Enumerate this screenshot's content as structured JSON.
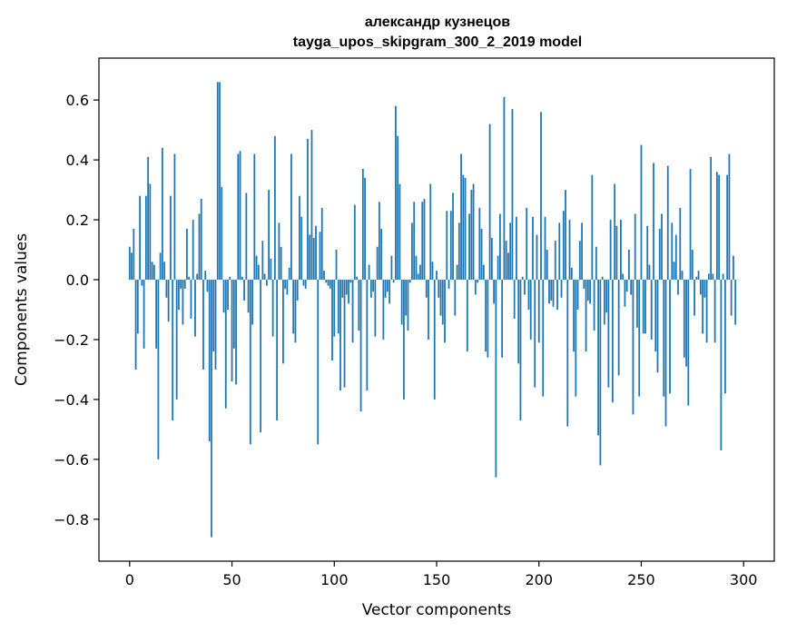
{
  "chart_data": {
    "type": "bar",
    "title": [
      "александр кузнецов",
      "tayga_upos_skipgram_300_2_2019 model"
    ],
    "xlabel": "Vector components",
    "ylabel": "Components values",
    "xlim": [
      -15,
      315
    ],
    "ylim": [
      -0.94,
      0.74
    ],
    "xticks": [
      0,
      50,
      100,
      150,
      200,
      250,
      300
    ],
    "xtick_labels": [
      "0",
      "50",
      "100",
      "150",
      "200",
      "250",
      "300"
    ],
    "yticks": [
      -0.8,
      -0.6,
      -0.4,
      -0.2,
      0.0,
      0.2,
      0.4,
      0.6
    ],
    "ytick_labels": [
      "−0.8",
      "−0.6",
      "−0.4",
      "−0.2",
      "0.0",
      "0.2",
      "0.4",
      "0.6"
    ],
    "grid": false,
    "color": "#1f77b4",
    "values": [
      0.11,
      0.09,
      0.17,
      -0.3,
      -0.18,
      0.28,
      -0.02,
      -0.23,
      0.28,
      0.41,
      0.32,
      0.06,
      0.05,
      -0.23,
      -0.6,
      0.09,
      0.44,
      0.06,
      -0.06,
      -0.14,
      0.28,
      -0.47,
      0.42,
      -0.4,
      -0.1,
      -0.03,
      -0.15,
      -0.03,
      0.17,
      0.01,
      -0.13,
      0.2,
      -0.19,
      0.02,
      0.22,
      0.27,
      -0.3,
      0.03,
      -0.04,
      -0.54,
      -0.86,
      -0.24,
      -0.3,
      0.66,
      0.66,
      0.31,
      -0.11,
      -0.43,
      -0.1,
      0.01,
      -0.34,
      -0.23,
      -0.35,
      0.42,
      0.43,
      0.01,
      -0.07,
      0.29,
      -0.11,
      -0.55,
      -0.15,
      0.42,
      0.08,
      0.05,
      -0.51,
      0.13,
      0.02,
      -0.02,
      0.3,
      0.07,
      -0.19,
      0.48,
      -0.47,
      0.19,
      0.11,
      -0.28,
      -0.03,
      -0.05,
      0.04,
      0.42,
      -0.18,
      -0.21,
      -0.07,
      0.28,
      0.21,
      -0.02,
      -0.03,
      0.47,
      0.15,
      0.5,
      0.14,
      0.18,
      -0.55,
      0.16,
      0.24,
      0.03,
      -0.01,
      -0.02,
      -0.03,
      -0.27,
      -0.19,
      0.1,
      -0.18,
      -0.37,
      -0.06,
      -0.36,
      -0.05,
      -0.08,
      -0.01,
      -0.21,
      0.25,
      0.01,
      -0.17,
      -0.44,
      0.37,
      0.34,
      -0.37,
      0.05,
      -0.06,
      -0.04,
      -0.19,
      0.11,
      0.26,
      0.17,
      -0.2,
      -0.06,
      -0.04,
      -0.08,
      0.08,
      -0.01,
      0.58,
      0.48,
      0.32,
      -0.15,
      -0.4,
      -0.12,
      -0.17,
      -0.01,
      0.19,
      0.26,
      0.08,
      0.02,
      0.05,
      0.26,
      0.27,
      -0.06,
      -0.2,
      0.32,
      0.06,
      -0.4,
      0.03,
      -0.06,
      -0.12,
      -0.15,
      -0.21,
      0.23,
      -0.03,
      0.23,
      0.29,
      -0.12,
      0.05,
      0.19,
      0.42,
      0.35,
      0.34,
      -0.24,
      0.22,
      0.3,
      0.32,
      -0.05,
      -0.01,
      0.24,
      0.17,
      0.05,
      -0.24,
      -0.26,
      0.52,
      0.14,
      -0.08,
      -0.66,
      0.08,
      0.22,
      -0.26,
      0.61,
      0.13,
      0.09,
      0.19,
      0.57,
      -0.13,
      0.21,
      -0.28,
      -0.47,
      0.01,
      -0.05,
      0.24,
      -0.1,
      -0.2,
      0.21,
      -0.36,
      0.15,
      -0.21,
      0.56,
      -0.39,
      0.21,
      0.1,
      -0.08,
      -0.07,
      -0.09,
      0.13,
      -0.1,
      0.19,
      -0.06,
      0.23,
      0.3,
      -0.49,
      0.2,
      0.04,
      -0.24,
      -0.39,
      -0.1,
      0.13,
      0.19,
      -0.03,
      -0.24,
      -0.07,
      -0.08,
      0.35,
      -0.17,
      0.11,
      -0.52,
      -0.62,
      0.01,
      -0.15,
      -0.11,
      -0.36,
      0.2,
      -0.41,
      0.32,
      0.18,
      -0.32,
      0.2,
      0.02,
      -0.09,
      -0.04,
      0.1,
      -0.05,
      -0.45,
      0.22,
      -0.16,
      -0.39,
      0.45,
      -0.18,
      -0.18,
      0.18,
      0.05,
      -0.2,
      0.39,
      -0.24,
      -0.31,
      0.17,
      0.22,
      -0.39,
      -0.49,
      0.38,
      -0.38,
      0.19,
      0.06,
      0.15,
      -0.05,
      0.24,
      0.03,
      -0.26,
      -0.29,
      -0.42,
      0.37,
      0.1,
      -0.12,
      0.01,
      0.03,
      -0.05,
      -0.18,
      -0.06,
      -0.21,
      0.02,
      0.41,
      0.02,
      -0.21,
      0.36,
      0.35,
      -0.57,
      0.02,
      -0.38,
      0.35,
      0.42,
      -0.12,
      0.08,
      -0.15
    ]
  }
}
